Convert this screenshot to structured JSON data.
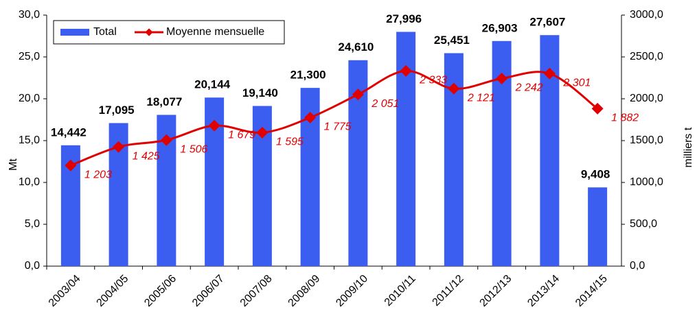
{
  "chart_data": {
    "type": "bar_line",
    "categories": [
      "2003/04",
      "2004/05",
      "2005/06",
      "2006/07",
      "2007/08",
      "2008/09",
      "2009/10",
      "2010/11",
      "2011/12",
      "2012/13",
      "2013/14",
      "2014/15"
    ],
    "series": [
      {
        "name": "Total",
        "color": "#3b5ef0",
        "type": "bar",
        "values": [
          14.442,
          17.095,
          18.077,
          20.144,
          19.14,
          21.3,
          24.61,
          27.996,
          25.451,
          26.903,
          27.607,
          9.408
        ],
        "value_labels": [
          "14,442",
          "17,095",
          "18,077",
          "20,144",
          "19,140",
          "21,300",
          "24,610",
          "27,996",
          "25,451",
          "26,903",
          "27,607",
          "9,408"
        ]
      },
      {
        "name": "Moyenne mensuelle",
        "color": "#e00000",
        "type": "line",
        "axis": "y2",
        "values": [
          1203,
          1425,
          1506,
          1679,
          1595,
          1775,
          2051,
          2333,
          2121,
          2242,
          2301,
          1882
        ],
        "value_labels": [
          "1 203",
          "1 425",
          "1 506",
          "1 679",
          "1 595",
          "1 775",
          "2 051",
          "2 333",
          "2 121",
          "2 242",
          "2 301",
          "1 882"
        ]
      }
    ],
    "ylabel": "Mt",
    "y2label": "milliers t",
    "ylim": [
      0,
      30
    ],
    "yticks": [
      {
        "value": 0,
        "label": "0,0"
      },
      {
        "value": 5,
        "label": "5,0"
      },
      {
        "value": 10,
        "label": "10,0"
      },
      {
        "value": 15,
        "label": "15,0"
      },
      {
        "value": 20,
        "label": "20,0"
      },
      {
        "value": 25,
        "label": "25,0"
      },
      {
        "value": 30,
        "label": "30,0"
      }
    ],
    "y2lim": [
      0,
      3000
    ],
    "y2ticks": [
      {
        "value": 0,
        "label": "0,0"
      },
      {
        "value": 500,
        "label": "500,0"
      },
      {
        "value": 1000,
        "label": "1000,0"
      },
      {
        "value": 1500,
        "label": "1500,0"
      },
      {
        "value": 2000,
        "label": "2000,0"
      },
      {
        "value": 2500,
        "label": "2500,0"
      },
      {
        "value": 3000,
        "label": "3000,0"
      }
    ],
    "grid": false,
    "legend": "upper left"
  }
}
